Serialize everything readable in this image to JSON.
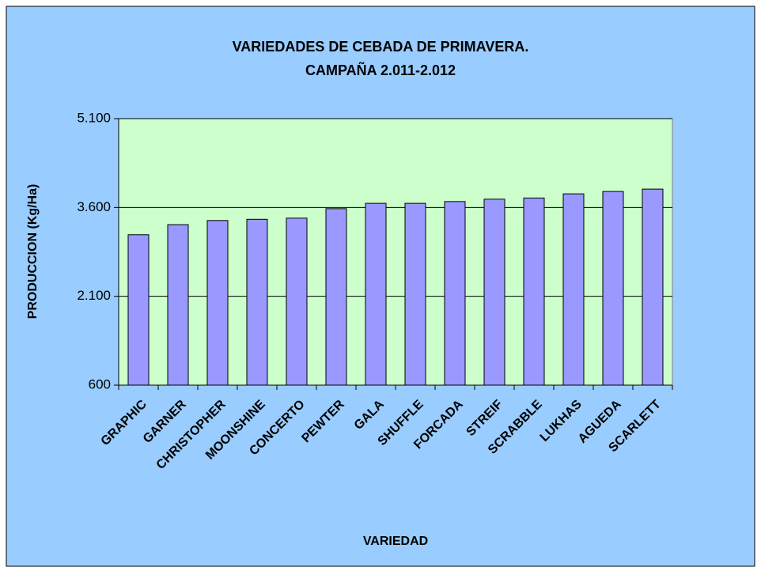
{
  "chart_data": {
    "type": "bar",
    "title": "VARIEDADES DE CEBADA DE PRIMAVERA.",
    "subtitle": "CAMPAÑA 2.011-2.012",
    "x_label": "VARIEDAD",
    "y_label": "PRODUCCION (Kg/Ha)",
    "categories": [
      "GRAPHIC",
      "GARNER",
      "CHRISTOPHER",
      "MOONSHINE",
      "CONCERTO",
      "PEWTER",
      "GALA",
      "SHUFFLE",
      "FORCADA",
      "STREIF",
      "SCRABBLE",
      "LUKHAS",
      "AGUEDA",
      "SCARLETT"
    ],
    "values": [
      3140,
      3310,
      3380,
      3400,
      3420,
      3580,
      3670,
      3670,
      3700,
      3740,
      3760,
      3830,
      3870,
      3910
    ],
    "color": "#9999ff",
    "ylim": [
      600,
      5100
    ],
    "yticks": [
      600,
      {
        "value": 2100,
        "label": "2.100"
      },
      {
        "value": 3600,
        "label": "3.600"
      },
      {
        "value": 5100,
        "label": "5.100"
      }
    ],
    "grid": true
  }
}
